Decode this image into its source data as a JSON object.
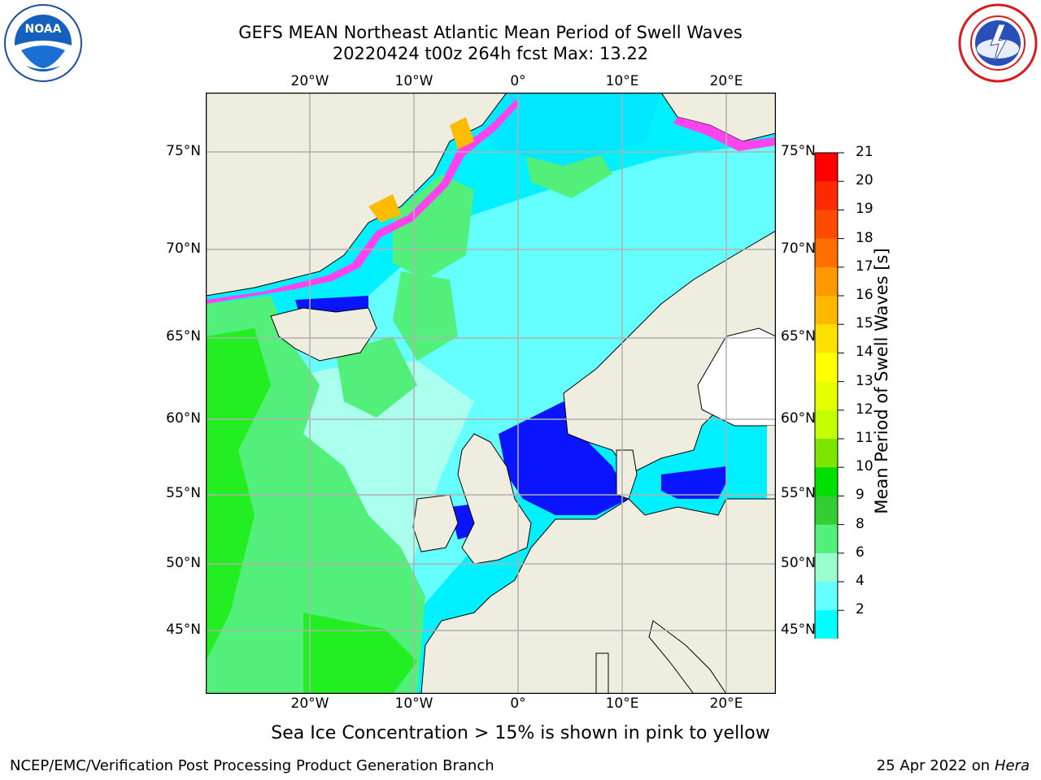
{
  "title": {
    "line1": "GEFS MEAN Northeast Atlantic Mean Period of Swell Waves",
    "line2": "20220424 t00z 264h fcst   Max: 13.22"
  },
  "logos": {
    "noaa": {
      "text": "NOAA",
      "icon": "noaa-logo"
    },
    "nws": {
      "icon": "national-weather-service-logo"
    }
  },
  "axes": {
    "lon_labels": [
      "20°W",
      "10°W",
      "0°",
      "10°E",
      "20°E"
    ],
    "lat_labels": [
      "75°N",
      "70°N",
      "65°N",
      "60°N",
      "55°N",
      "50°N",
      "45°N"
    ]
  },
  "colorbar": {
    "label": "Mean Period of Swell Waves [s]",
    "ticks": [
      "21",
      "20",
      "19",
      "18",
      "17",
      "16",
      "15",
      "14",
      "13",
      "12",
      "11",
      "10",
      "9",
      "8",
      "6",
      "4",
      "2"
    ],
    "colors": [
      "#ff0000",
      "#ff2a00",
      "#ff4b00",
      "#ff6f00",
      "#ff9900",
      "#ffb800",
      "#ffe000",
      "#ffff00",
      "#e6ff00",
      "#c3ff00",
      "#7ce600",
      "#00e000",
      "#33cc33",
      "#52f07a",
      "#99ffcc",
      "#66ffff",
      "#00ffff",
      "#007aff"
    ],
    "extend_color": "#0000ff"
  },
  "map": {
    "land_color": "#efede0",
    "ocean_colors": {
      "deep_blue": "#0a14ff",
      "cyan": "#00f0ff",
      "light_cyan": "#66ffff",
      "pale": "#aaffee",
      "green": "#52f07a",
      "bright_green": "#22ee22"
    },
    "ice_colors": [
      "#ff44ee",
      "#ffbb00",
      "#ffee55"
    ]
  },
  "caption": "Sea Ice Concentration > 15% is shown in pink to yellow",
  "footer": {
    "left": "NCEP/EMC/Verification Post Processing Product Generation Branch",
    "date": "25 Apr 2022 on",
    "host": "Hera"
  }
}
